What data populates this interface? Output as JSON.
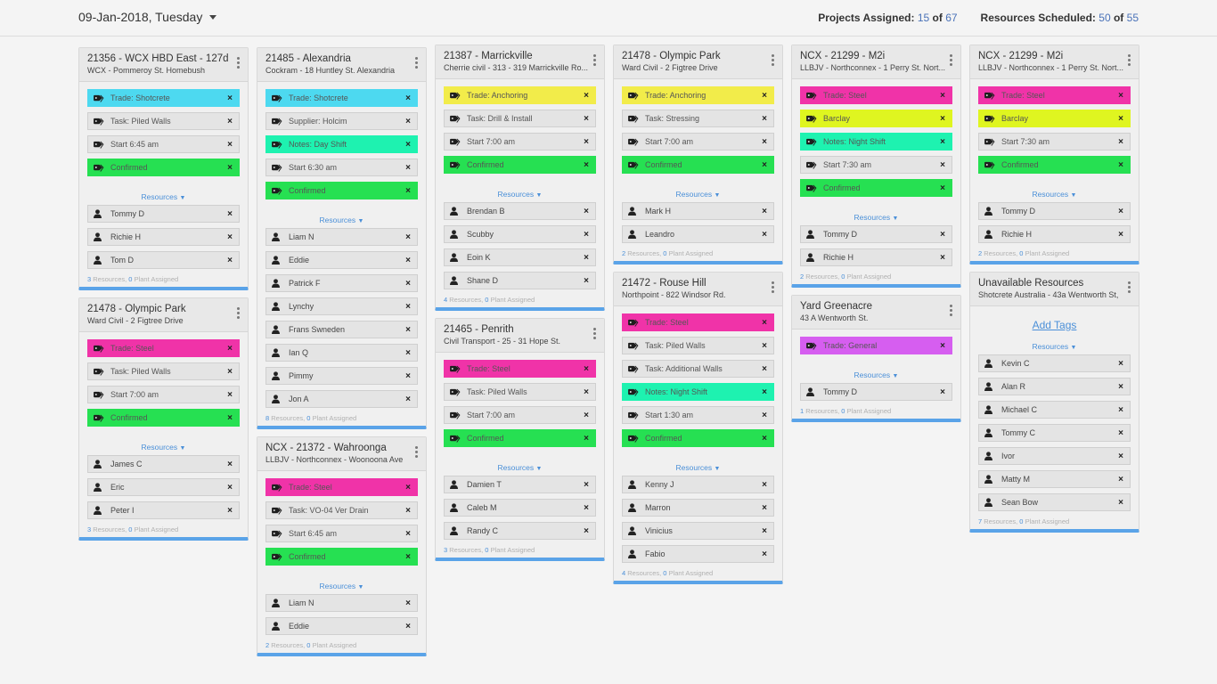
{
  "header": {
    "date": "09-Jan-2018, Tuesday",
    "projects_label": "Projects Assigned:",
    "projects_assigned": "15",
    "projects_of": "of",
    "projects_total": "67",
    "resources_label": "Resources Scheduled:",
    "resources_scheduled": "50",
    "resources_of": "of",
    "resources_total": "55"
  },
  "colors": {
    "cyan": "#4dd9f0",
    "green": "#26e052",
    "teal": "#1ef2b0",
    "yellow": "#f2ec4a",
    "magenta": "#f033a8",
    "lime": "#dff520",
    "violet": "#d65ef0",
    "accent": "#5aa3e8"
  },
  "labels": {
    "resources_toggle": "Resources",
    "resources_word": "Resources,",
    "plant_word": "Plant Assigned",
    "add_tags": "Add Tags"
  },
  "columns": [
    {
      "cards": [
        {
          "title": "21356 - WCX HBD East - 127d",
          "sub": "WCX - Pommeroy St. Homebush",
          "tags": [
            {
              "text": "Trade: Shotcrete",
              "color": "cyan"
            },
            {
              "text": "Task: Piled Walls",
              "color": ""
            },
            {
              "text": "Start 6:45 am",
              "color": ""
            },
            {
              "text": "Confirmed",
              "color": "green"
            }
          ],
          "people": [
            "Tommy D",
            "Richie H",
            "Tom D"
          ],
          "res_count": "3",
          "plant_count": "0"
        },
        {
          "title": "21478 - Olympic Park",
          "sub": "Ward Civil - 2 Figtree Drive",
          "tags": [
            {
              "text": "Trade: Steel",
              "color": "magenta"
            },
            {
              "text": "Task: Piled Walls",
              "color": ""
            },
            {
              "text": "Start 7:00 am",
              "color": ""
            },
            {
              "text": "Confirmed",
              "color": "green"
            }
          ],
          "people": [
            "James C",
            "Eric",
            "Peter I"
          ],
          "res_count": "3",
          "plant_count": "0"
        }
      ]
    },
    {
      "cards": [
        {
          "title": "21485 - Alexandria",
          "sub": "Cockram - 18 Huntley St. Alexandria",
          "tags": [
            {
              "text": "Trade: Shotcrete",
              "color": "cyan"
            },
            {
              "text": "Supplier: Holcim",
              "color": ""
            },
            {
              "text": "Notes: Day Shift",
              "color": "teal"
            },
            {
              "text": "Start 6:30 am",
              "color": ""
            },
            {
              "text": "Confirmed",
              "color": "green"
            }
          ],
          "people": [
            "Liam N",
            "Eddie",
            "Patrick F",
            "Lynchy",
            "Frans Swneden",
            "Ian Q",
            "Pimmy",
            "Jon A"
          ],
          "res_count": "8",
          "plant_count": "0"
        },
        {
          "title": "NCX - 21372 - Wahroonga",
          "sub": "LLBJV - Northconnex - Woonoona Ave",
          "tags": [
            {
              "text": "Trade: Steel",
              "color": "magenta"
            },
            {
              "text": "Task: VO-04 Ver Drain",
              "color": ""
            },
            {
              "text": "Start 6:45 am",
              "color": ""
            },
            {
              "text": "Confirmed",
              "color": "green"
            }
          ],
          "people": [
            "Liam N",
            "Eddie"
          ],
          "res_count": "2",
          "plant_count": "0"
        }
      ]
    },
    {
      "cards": [
        {
          "title": "21387 - Marrickville",
          "sub": "Cherrie civil - 313 - 319 Marrickville Ro...",
          "tags": [
            {
              "text": "Trade: Anchoring",
              "color": "yellow"
            },
            {
              "text": "Task: Drill & Install",
              "color": ""
            },
            {
              "text": "Start 7:00 am",
              "color": ""
            },
            {
              "text": "Confirmed",
              "color": "green"
            }
          ],
          "people": [
            "Brendan B",
            "Scubby",
            "Eoin K",
            "Shane D"
          ],
          "res_count": "4",
          "plant_count": "0"
        },
        {
          "title": "21465 - Penrith",
          "sub": "Civil Transport - 25 - 31 Hope St.",
          "tags": [
            {
              "text": "Trade: Steel",
              "color": "magenta"
            },
            {
              "text": "Task: Piled Walls",
              "color": ""
            },
            {
              "text": "Start 7:00 am",
              "color": ""
            },
            {
              "text": "Confirmed",
              "color": "green"
            }
          ],
          "people": [
            "Damien T",
            "Caleb M",
            "Randy C"
          ],
          "res_count": "3",
          "plant_count": "0"
        }
      ]
    },
    {
      "cards": [
        {
          "title": "21478 - Olympic Park",
          "sub": "Ward Civil - 2 Figtree Drive",
          "tags": [
            {
              "text": "Trade: Anchoring",
              "color": "yellow"
            },
            {
              "text": "Task: Stressing",
              "color": ""
            },
            {
              "text": "Start 7:00 am",
              "color": ""
            },
            {
              "text": "Confirmed",
              "color": "green"
            }
          ],
          "people": [
            "Mark H",
            "Leandro"
          ],
          "res_count": "2",
          "plant_count": "0"
        },
        {
          "title": "21472 - Rouse Hill",
          "sub": "Northpoint - 822 Windsor Rd.",
          "tags": [
            {
              "text": "Trade: Steel",
              "color": "magenta"
            },
            {
              "text": "Task: Piled Walls",
              "color": ""
            },
            {
              "text": "Task: Additional Walls",
              "color": ""
            },
            {
              "text": "Notes: Night Shift",
              "color": "teal"
            },
            {
              "text": "Start 1:30 am",
              "color": ""
            },
            {
              "text": "Confirmed",
              "color": "green"
            }
          ],
          "people": [
            "Kenny J",
            "Marron",
            "Vinicius",
            "Fabio"
          ],
          "res_count": "4",
          "plant_count": "0"
        }
      ]
    },
    {
      "cards": [
        {
          "title": "NCX - 21299 - M2i",
          "sub": "LLBJV - Northconnex - 1 Perry St. Nort...",
          "tags": [
            {
              "text": "Trade: Steel",
              "color": "magenta"
            },
            {
              "text": "Barclay",
              "color": "lime"
            },
            {
              "text": "Notes: Night Shift",
              "color": "teal"
            },
            {
              "text": "Start 7:30 am",
              "color": ""
            },
            {
              "text": "Confirmed",
              "color": "green"
            }
          ],
          "people": [
            "Tommy D",
            "Richie H"
          ],
          "res_count": "2",
          "plant_count": "0"
        },
        {
          "title": "Yard Greenacre",
          "sub": "43 A Wentworth St.",
          "tags": [
            {
              "text": "Trade: General",
              "color": "violet"
            }
          ],
          "people": [
            "Tommy D"
          ],
          "res_count": "1",
          "plant_count": "0"
        }
      ]
    },
    {
      "cards": [
        {
          "title": "NCX - 21299 - M2i",
          "sub": "LLBJV - Northconnex - 1 Perry St. Nort...",
          "tags": [
            {
              "text": "Trade: Steel",
              "color": "magenta"
            },
            {
              "text": "Barclay",
              "color": "lime"
            },
            {
              "text": "Start 7:30 am",
              "color": ""
            },
            {
              "text": "Confirmed",
              "color": "green"
            }
          ],
          "people": [
            "Tommy D",
            "Richie H"
          ],
          "res_count": "2",
          "plant_count": "0"
        },
        {
          "title": "Unavailable Resources",
          "sub": "Shotcrete Australia - 43a Wentworth St,",
          "add_tags": true,
          "tags": [],
          "people": [
            "Kevin C",
            "Alan R",
            "Michael C",
            "Tommy C",
            "Ivor",
            "Matty M",
            "Sean Bow"
          ],
          "res_count": "7",
          "plant_count": "0"
        }
      ]
    }
  ]
}
